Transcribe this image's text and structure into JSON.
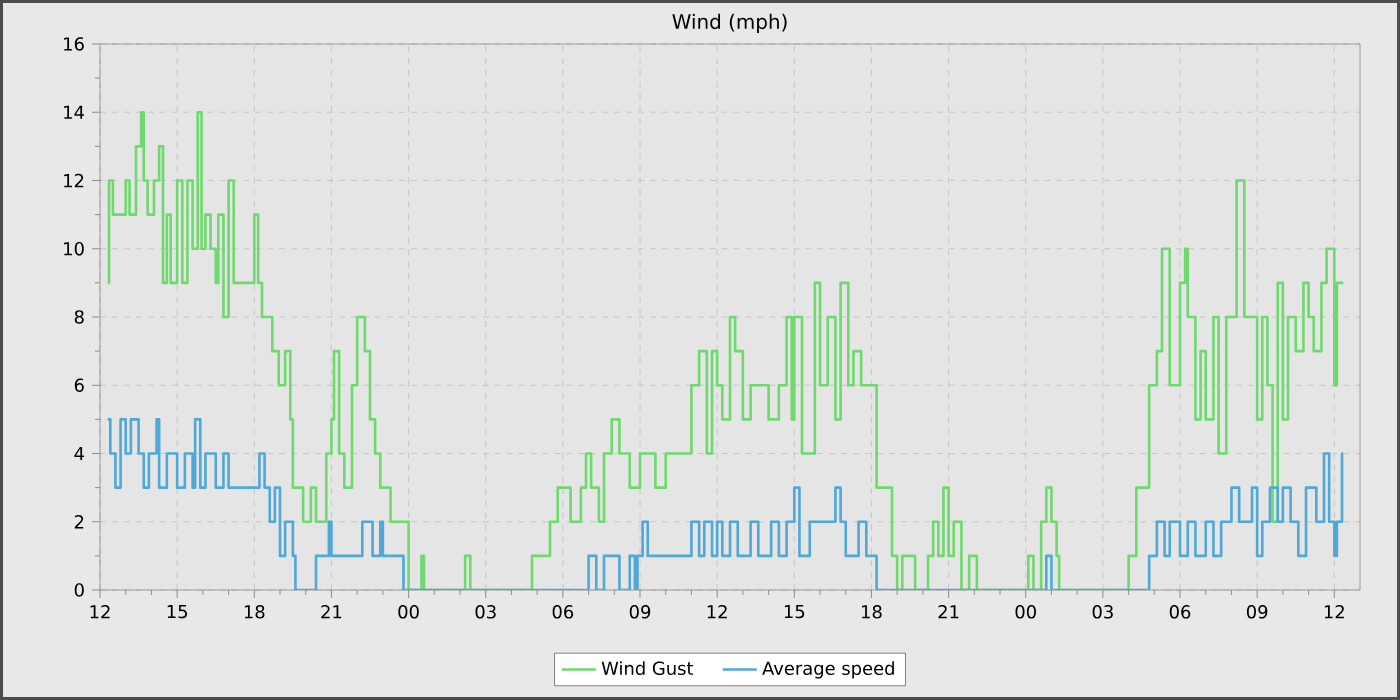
{
  "chart_data": {
    "type": "step",
    "title": "Wind (mph)",
    "xlim": [
      12,
      61
    ],
    "ylim": [
      0,
      16
    ],
    "xticks": [
      {
        "value": 12,
        "label": "12"
      },
      {
        "value": 13,
        "label": null
      },
      {
        "value": 14,
        "label": null
      },
      {
        "value": 15,
        "label": "15"
      },
      {
        "value": 16,
        "label": null
      },
      {
        "value": 17,
        "label": null
      },
      {
        "value": 18,
        "label": "18"
      },
      {
        "value": 19,
        "label": null
      },
      {
        "value": 20,
        "label": null
      },
      {
        "value": 21,
        "label": "21"
      },
      {
        "value": 22,
        "label": null
      },
      {
        "value": 23,
        "label": null
      },
      {
        "value": 24,
        "label": "00"
      },
      {
        "value": 25,
        "label": null
      },
      {
        "value": 26,
        "label": null
      },
      {
        "value": 27,
        "label": "03"
      },
      {
        "value": 28,
        "label": null
      },
      {
        "value": 29,
        "label": null
      },
      {
        "value": 30,
        "label": "06"
      },
      {
        "value": 31,
        "label": null
      },
      {
        "value": 32,
        "label": null
      },
      {
        "value": 33,
        "label": "09"
      },
      {
        "value": 34,
        "label": null
      },
      {
        "value": 35,
        "label": null
      },
      {
        "value": 36,
        "label": "12"
      },
      {
        "value": 37,
        "label": null
      },
      {
        "value": 38,
        "label": null
      },
      {
        "value": 39,
        "label": "15"
      },
      {
        "value": 40,
        "label": null
      },
      {
        "value": 41,
        "label": null
      },
      {
        "value": 42,
        "label": "18"
      },
      {
        "value": 43,
        "label": null
      },
      {
        "value": 44,
        "label": null
      },
      {
        "value": 45,
        "label": "21"
      },
      {
        "value": 46,
        "label": null
      },
      {
        "value": 47,
        "label": null
      },
      {
        "value": 48,
        "label": "00"
      },
      {
        "value": 49,
        "label": null
      },
      {
        "value": 50,
        "label": null
      },
      {
        "value": 51,
        "label": "03"
      },
      {
        "value": 52,
        "label": null
      },
      {
        "value": 53,
        "label": null
      },
      {
        "value": 54,
        "label": "06"
      },
      {
        "value": 55,
        "label": null
      },
      {
        "value": 56,
        "label": null
      },
      {
        "value": 57,
        "label": "09"
      },
      {
        "value": 58,
        "label": null
      },
      {
        "value": 59,
        "label": null
      },
      {
        "value": 60,
        "label": "12"
      }
    ],
    "yticks": [
      0,
      {
        "value": 1,
        "label": null
      },
      2,
      {
        "value": 3,
        "label": null
      },
      4,
      {
        "value": 5,
        "label": null
      },
      6,
      {
        "value": 7,
        "label": null
      },
      8,
      {
        "value": 9,
        "label": null
      },
      10,
      {
        "value": 11,
        "label": null
      },
      12,
      {
        "value": 13,
        "label": null
      },
      14,
      {
        "value": 15,
        "label": null
      },
      16
    ],
    "grid": true,
    "legend": "bottom",
    "line_style": "solid",
    "marker": "none",
    "series": [
      {
        "name": "Wind Gust",
        "color": "#6fd86f",
        "x": [
          12.3,
          12.35,
          12.5,
          13.0,
          13.15,
          13.4,
          13.6,
          13.7,
          13.85,
          14.1,
          14.3,
          14.45,
          14.6,
          14.75,
          15.0,
          15.2,
          15.4,
          15.6,
          15.8,
          15.95,
          16.1,
          16.3,
          16.5,
          16.6,
          16.8,
          17.0,
          17.2,
          17.6,
          18.0,
          18.15,
          18.3,
          18.5,
          18.7,
          18.95,
          19.2,
          19.4,
          19.5,
          19.9,
          20.2,
          20.4,
          20.8,
          21.0,
          21.1,
          21.3,
          21.5,
          21.8,
          22.0,
          22.3,
          22.5,
          22.7,
          22.9,
          23.3,
          24.0,
          24.5,
          24.6,
          26.2,
          26.4,
          28.8,
          29.5,
          29.8,
          30.3,
          30.7,
          30.9,
          31.1,
          31.4,
          31.6,
          31.9,
          32.2,
          32.6,
          33.0,
          33.6,
          34.0,
          35.0,
          35.3,
          35.6,
          35.8,
          36.0,
          36.2,
          36.5,
          36.7,
          37.0,
          37.3,
          38.0,
          38.4,
          38.7,
          38.9,
          39.0,
          39.3,
          39.8,
          40.0,
          40.3,
          40.6,
          40.8,
          41.1,
          41.3,
          41.6,
          42.2,
          42.8,
          43.0,
          43.2,
          43.7,
          44.2,
          44.4,
          44.6,
          44.8,
          45.0,
          45.2,
          45.5,
          45.8,
          46.1,
          48.1,
          48.3,
          48.6,
          48.8,
          49.0,
          49.2,
          49.3,
          52.0,
          52.3,
          52.8,
          53.1,
          53.3,
          53.6,
          54.0,
          54.2,
          54.3,
          54.6,
          54.8,
          55.0,
          55.3,
          55.5,
          55.8,
          56.2,
          56.5,
          57.0,
          57.2,
          57.4,
          57.6,
          57.8,
          58.0,
          58.2,
          58.5,
          58.8,
          59.0,
          59.2,
          59.5,
          59.7,
          60.0,
          60.1,
          60.35
        ],
        "values": [
          9,
          12,
          11,
          12,
          11,
          13,
          14,
          12,
          11,
          12,
          13,
          9,
          11,
          9,
          12,
          9,
          12,
          10,
          14,
          10,
          11,
          10,
          9,
          11,
          8,
          12,
          9,
          9,
          11,
          9,
          8,
          8,
          7,
          6,
          7,
          5,
          3,
          2,
          3,
          2,
          4,
          5,
          7,
          4,
          3,
          6,
          8,
          7,
          5,
          4,
          3,
          2,
          0,
          1,
          0,
          1,
          0,
          1,
          2,
          3,
          2,
          3,
          4,
          3,
          2,
          4,
          5,
          4,
          3,
          4,
          3,
          4,
          6,
          7,
          4,
          7,
          6,
          5,
          8,
          7,
          5,
          6,
          5,
          6,
          8,
          5,
          8,
          4,
          9,
          6,
          8,
          5,
          9,
          6,
          7,
          6,
          3,
          1,
          0,
          1,
          0,
          1,
          2,
          1,
          3,
          1,
          2,
          0,
          1,
          0,
          1,
          0,
          2,
          3,
          2,
          1,
          0,
          1,
          3,
          6,
          7,
          10,
          6,
          9,
          10,
          8,
          5,
          7,
          5,
          8,
          4,
          8,
          12,
          8,
          5,
          8,
          6,
          2,
          9,
          5,
          8,
          7,
          9,
          8,
          7,
          9,
          10,
          6,
          9,
          9
        ]
      },
      {
        "name": "Average speed",
        "color": "#4fa8d8",
        "x": [
          12.3,
          12.4,
          12.6,
          12.8,
          13.0,
          13.2,
          13.5,
          13.7,
          13.9,
          14.2,
          14.3,
          14.6,
          15.0,
          15.3,
          15.6,
          15.7,
          15.9,
          16.1,
          16.5,
          16.8,
          17.0,
          18.2,
          18.4,
          18.6,
          18.8,
          19.0,
          19.2,
          19.5,
          19.6,
          20.4,
          20.9,
          21.0,
          22.2,
          22.6,
          22.9,
          23.0,
          23.8,
          31.0,
          31.3,
          31.6,
          32.2,
          32.6,
          32.8,
          32.9,
          33.1,
          33.3,
          35.0,
          35.3,
          35.5,
          35.8,
          36.0,
          36.2,
          36.5,
          36.8,
          37.3,
          37.6,
          38.1,
          38.4,
          38.7,
          39.0,
          39.2,
          39.6,
          40.6,
          40.8,
          41.0,
          41.5,
          41.8,
          42.2,
          48.8,
          49.0,
          52.8,
          53.1,
          53.4,
          53.6,
          54.0,
          54.3,
          54.6,
          55.0,
          55.3,
          55.6,
          56.0,
          56.3,
          56.8,
          57.0,
          57.2,
          57.5,
          57.8,
          58.0,
          58.3,
          58.6,
          58.9,
          59.3,
          59.6,
          59.8,
          60.0,
          60.1,
          60.3,
          60.35
        ],
        "values": [
          5,
          4,
          3,
          5,
          4,
          5,
          4,
          3,
          4,
          5,
          3,
          4,
          3,
          4,
          3,
          5,
          3,
          4,
          3,
          4,
          3,
          4,
          3,
          2,
          3,
          1,
          2,
          1,
          0,
          1,
          2,
          1,
          2,
          1,
          2,
          1,
          0,
          1,
          0,
          1,
          0,
          1,
          0,
          1,
          2,
          1,
          2,
          1,
          2,
          1,
          2,
          1,
          2,
          1,
          2,
          1,
          2,
          1,
          2,
          3,
          1,
          2,
          3,
          2,
          1,
          2,
          1,
          0,
          1,
          0,
          1,
          2,
          1,
          2,
          1,
          2,
          1,
          2,
          1,
          2,
          3,
          2,
          3,
          1,
          2,
          3,
          2,
          3,
          2,
          1,
          3,
          2,
          4,
          2,
          1,
          2,
          4,
          4
        ]
      }
    ]
  }
}
